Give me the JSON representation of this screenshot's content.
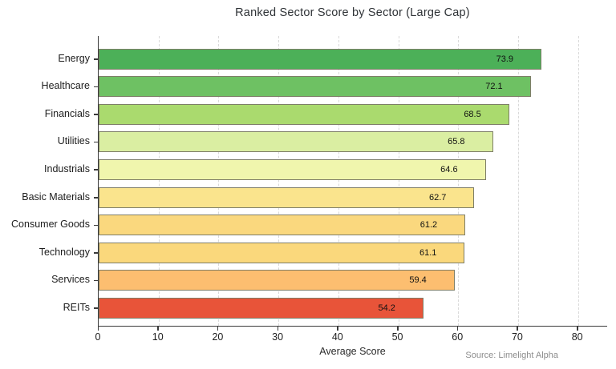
{
  "title": "Ranked Sector Score by Sector (Large Cap)",
  "source_note": "Source: Limelight Alpha",
  "colors": {
    "background": "#ffffff",
    "axis": "#3a3a3a",
    "grid": "#d9d9d9",
    "bar_edge": "#7e7e68",
    "title_text": "#2f3337",
    "tick_text": "#1d1d1d",
    "source_text": "#8d8d8d"
  },
  "chart_data": {
    "type": "bar",
    "orientation": "horizontal",
    "title": "Ranked Sector Score by Sector (Large Cap)",
    "xlabel": "Average Score",
    "categories": [
      "Energy",
      "Healthcare",
      "Financials",
      "Utilities",
      "Industrials",
      "Basic Materials",
      "Consumer Goods",
      "Technology",
      "Services",
      "REITs"
    ],
    "values": [
      73.9,
      72.1,
      68.5,
      65.8,
      64.6,
      62.7,
      61.2,
      61.1,
      59.4,
      54.2
    ],
    "value_labels": [
      "73.9",
      "72.1",
      "68.5",
      "65.8",
      "64.6",
      "62.7",
      "61.2",
      "61.1",
      "59.4",
      "54.2"
    ],
    "bar_colors": [
      "#4cb058",
      "#6ec163",
      "#aada6e",
      "#daeea2",
      "#f0f6ad",
      "#fae48d",
      "#fad87e",
      "#fad87c",
      "#fcbe70",
      "#e85439"
    ],
    "xlim": [
      0,
      85
    ],
    "xticks": [
      0,
      10,
      20,
      30,
      40,
      50,
      60,
      70,
      80
    ],
    "grid": "vertical-dashed",
    "legend": "none",
    "value_label_position": "inside-right"
  }
}
